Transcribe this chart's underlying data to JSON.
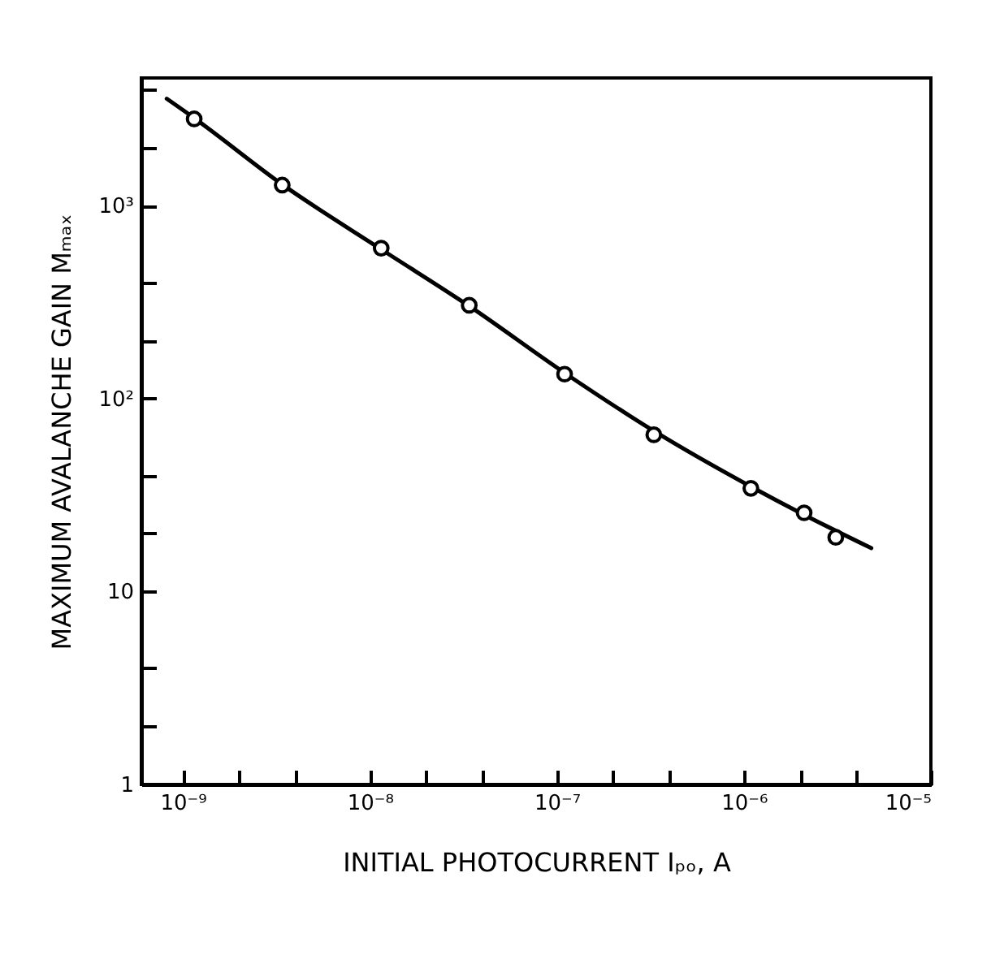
{
  "chart_data": {
    "type": "scatter",
    "xlabel": "INITIAL PHOTOCURRENT Iₚₒ, A",
    "ylabel": "MAXIMUM AVALANCHE GAIN Mₘₐₓ",
    "log": "xy",
    "grid": false,
    "legend": false,
    "xlim": [
      6e-10,
      1e-05
    ],
    "ylim": [
      1,
      4600
    ],
    "xticks": [
      {
        "value": 1e-09,
        "label": "10⁻⁹"
      },
      {
        "value": 2e-09,
        "label": null
      },
      {
        "value": 4e-09,
        "label": null
      },
      {
        "value": 1e-08,
        "label": "10⁻⁸"
      },
      {
        "value": 2e-08,
        "label": null
      },
      {
        "value": 4e-08,
        "label": null
      },
      {
        "value": 1e-07,
        "label": "10⁻⁷"
      },
      {
        "value": 2e-07,
        "label": null
      },
      {
        "value": 4e-07,
        "label": null
      },
      {
        "value": 1e-06,
        "label": "10⁻⁶"
      },
      {
        "value": 2e-06,
        "label": null
      },
      {
        "value": 4e-06,
        "label": null
      },
      {
        "value": 1e-05,
        "label": "10⁻⁵"
      }
    ],
    "yticks": [
      1,
      {
        "value": 2,
        "label": null
      },
      {
        "value": 4,
        "label": null
      },
      10,
      {
        "value": 20,
        "label": null
      },
      {
        "value": 40,
        "label": null
      },
      {
        "value": 100,
        "label": "10²"
      },
      {
        "value": 200,
        "label": null
      },
      {
        "value": 400,
        "label": null
      },
      {
        "value": 1000,
        "label": "10³"
      },
      {
        "value": 2000,
        "label": null
      },
      {
        "value": 4000,
        "label": null
      }
    ],
    "series": [
      {
        "type": "line",
        "color": "#000000",
        "line_style": "solid",
        "x": [
          8.2e-10,
          1.15e-09,
          3.4e-09,
          1.15e-08,
          3.4e-08,
          1.1e-07,
          3.3e-07,
          1.09e-06,
          2.1e-06,
          4.8e-06
        ],
        "values": [
          3590,
          2850,
          1290,
          595,
          302,
          136,
          68,
          35,
          25,
          16.8
        ]
      },
      {
        "type": "scatter",
        "color": "#000000",
        "marker": "circle",
        "x": [
          1.15e-09,
          3.4e-09,
          1.15e-08,
          3.4e-08,
          1.1e-07,
          3.3e-07,
          1.09e-06,
          2.1e-06,
          3.1e-06
        ],
        "values": [
          2820,
          1280,
          603,
          305,
          134,
          65,
          34.3,
          25.6,
          19.1
        ]
      }
    ]
  }
}
